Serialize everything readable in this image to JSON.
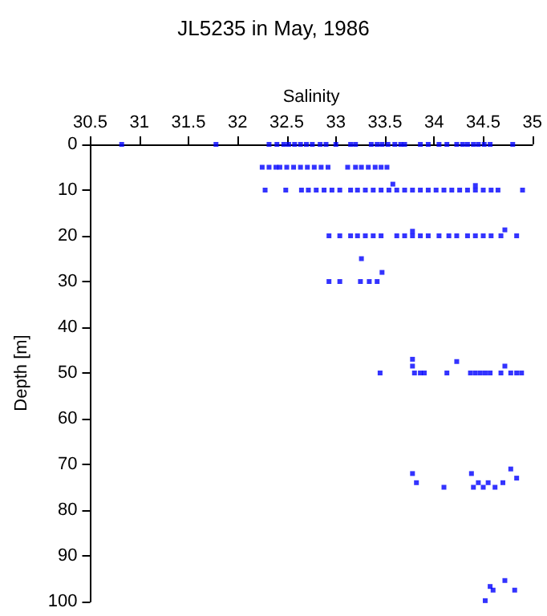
{
  "chart_data": {
    "type": "scatter",
    "title": "JL5235 in May, 1986",
    "xlabel": "Salinity",
    "ylabel": "Depth [m]",
    "xlim": [
      30.5,
      35
    ],
    "xticks": [
      30.5,
      31,
      31.5,
      32,
      32.5,
      33,
      33.5,
      34,
      34.5,
      35
    ],
    "ylim": [
      100,
      0
    ],
    "yticks": [
      0,
      10,
      20,
      30,
      40,
      50,
      60,
      70,
      80,
      90,
      100
    ],
    "grid": false,
    "marker": "square",
    "series": [
      {
        "color": "#0000ff",
        "x": [
          30.82,
          31.78,
          32.32,
          32.4,
          32.47,
          32.52,
          32.58,
          32.64,
          32.7,
          32.76,
          32.84,
          32.9,
          33.0,
          33.15,
          33.2,
          33.36,
          33.42,
          33.47,
          33.53,
          33.6,
          33.66,
          33.7,
          33.86,
          33.94,
          34.05,
          34.13,
          34.23,
          34.29,
          34.34,
          34.4,
          34.45,
          34.51,
          34.57,
          34.8,
          32.25,
          32.32,
          32.39,
          32.43,
          32.5,
          32.57,
          32.64,
          32.71,
          32.78,
          32.85,
          32.92,
          33.12,
          33.2,
          33.26,
          33.33,
          33.4,
          33.46,
          33.52,
          32.28,
          32.49,
          32.65,
          32.72,
          32.8,
          32.88,
          32.96,
          33.04,
          33.15,
          33.22,
          33.3,
          33.38,
          33.46,
          33.54,
          33.62,
          33.7,
          33.78,
          33.86,
          33.94,
          34.02,
          34.1,
          34.18,
          34.26,
          34.34,
          34.42,
          34.5,
          34.58,
          34.65,
          34.9,
          33.58,
          34.42,
          32.93,
          33.04,
          33.15,
          33.22,
          33.3,
          33.38,
          33.46,
          33.62,
          33.7,
          33.78,
          33.86,
          33.94,
          34.05,
          34.15,
          34.23,
          34.34,
          34.42,
          34.5,
          34.58,
          34.68,
          34.84,
          33.78,
          34.72,
          33.26,
          32.93,
          33.04,
          33.25,
          33.34,
          33.42,
          33.47,
          33.45,
          33.78,
          33.78,
          33.8,
          33.86,
          33.9,
          34.13,
          34.23,
          34.37,
          34.42,
          34.47,
          34.52,
          34.57,
          34.68,
          34.72,
          34.78,
          34.84,
          34.89,
          33.78,
          33.82,
          34.1,
          34.38,
          34.4,
          34.45,
          34.5,
          34.55,
          34.62,
          34.7,
          34.78,
          34.84,
          34.72,
          34.57,
          34.6,
          34.82,
          34.52
        ],
        "values": [
          0,
          0,
          0,
          0,
          0,
          0,
          0,
          0,
          0,
          0,
          0,
          0,
          0,
          0,
          0,
          0,
          0,
          0,
          0,
          0,
          0,
          0,
          0,
          0,
          0,
          0,
          0,
          0,
          0,
          0,
          0,
          0,
          0,
          0,
          5,
          5,
          5,
          5,
          5,
          5,
          5,
          5,
          5,
          5,
          5,
          5,
          5,
          5,
          5,
          5,
          5,
          5,
          10,
          10,
          10,
          10,
          10,
          10,
          10,
          10,
          10,
          10,
          10,
          10,
          10,
          10,
          10,
          10,
          10,
          10,
          10,
          10,
          10,
          10,
          10,
          10,
          10,
          10,
          10,
          10,
          10,
          8.7,
          9,
          20,
          20,
          20,
          20,
          20,
          20,
          20,
          20,
          20,
          20,
          20,
          20,
          20,
          20,
          20,
          20,
          20,
          20,
          20,
          20,
          20,
          19,
          18.7,
          25,
          30,
          30,
          30,
          30,
          30,
          28,
          50,
          47,
          48.5,
          50,
          50,
          50,
          50,
          47.5,
          50,
          50,
          50,
          50,
          50,
          50,
          48.5,
          50,
          50,
          50,
          72,
          74,
          75,
          72,
          75,
          74,
          75,
          74,
          75,
          74,
          71,
          73,
          95.4,
          96.7,
          97.5,
          97.5,
          99.8
        ]
      }
    ]
  }
}
